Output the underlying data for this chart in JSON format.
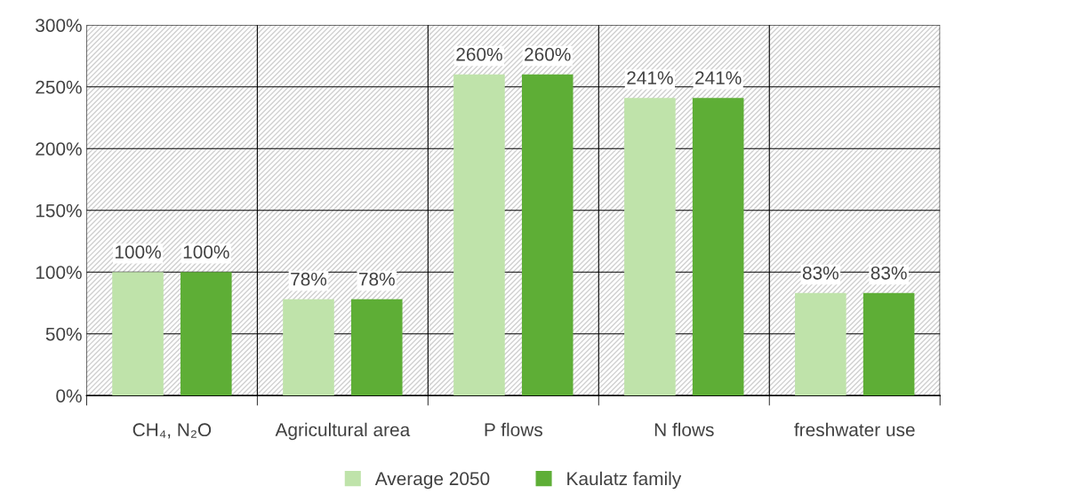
{
  "chart_data": {
    "type": "bar",
    "categories": [
      "CH₄, N₂O",
      "Agricultural area",
      "P flows",
      "N flows",
      "freshwater use"
    ],
    "series": [
      {
        "name": "Average 2050",
        "color": "#bfe3aa",
        "values": [
          100,
          78,
          260,
          241,
          83
        ],
        "value_labels": [
          "100%",
          "78%",
          "260%",
          "241%",
          "83%"
        ]
      },
      {
        "name": "Kaulatz family",
        "color": "#5eae36",
        "values": [
          100,
          78,
          260,
          241,
          83
        ],
        "value_labels": [
          "100%",
          "78%",
          "260%",
          "241%",
          "83%"
        ]
      }
    ],
    "ylim": [
      0,
      300
    ],
    "yticks": [
      {
        "value": 0,
        "label": "0%"
      },
      {
        "value": 50,
        "label": "50%"
      },
      {
        "value": 100,
        "label": "100%"
      },
      {
        "value": 150,
        "label": "150%"
      },
      {
        "value": 200,
        "label": "200%"
      },
      {
        "value": 250,
        "label": "250%"
      },
      {
        "value": 300,
        "label": "300%"
      }
    ],
    "grid": true,
    "legend": "bottom"
  }
}
